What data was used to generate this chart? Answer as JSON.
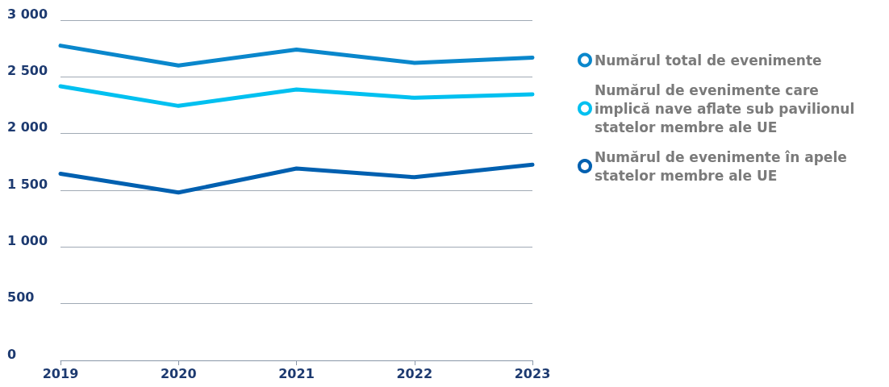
{
  "chart_data": {
    "type": "line",
    "categories": [
      "2019",
      "2020",
      "2021",
      "2022",
      "2023"
    ],
    "series": [
      {
        "name": "Numărul total de evenimente",
        "color": "#0a87cc",
        "values": [
          2775,
          2600,
          2741,
          2624,
          2670
        ]
      },
      {
        "name": "Numărul de evenimente care implică nave aflate sub pavilionul statelor membre ale UE",
        "color": "#00c0f0",
        "values": [
          2417,
          2244,
          2389,
          2315,
          2346
        ]
      },
      {
        "name": "Numărul de evenimente în apele statelor membre ale UE",
        "color": "#0060b0",
        "values": [
          1646,
          1480,
          1692,
          1615,
          1726
        ]
      }
    ],
    "ylim": [
      0,
      3000
    ],
    "yticks": [
      {
        "value": 0,
        "label": "0"
      },
      {
        "value": 500,
        "label": "500"
      },
      {
        "value": 1000,
        "label": "1 000"
      },
      {
        "value": 1500,
        "label": "1 500"
      },
      {
        "value": 2000,
        "label": "2 000"
      },
      {
        "value": 2500,
        "label": "2 500"
      },
      {
        "value": 3000,
        "label": "3 000"
      }
    ],
    "grid": "y",
    "legend": "right",
    "marker": "none",
    "line_style": "solid"
  }
}
